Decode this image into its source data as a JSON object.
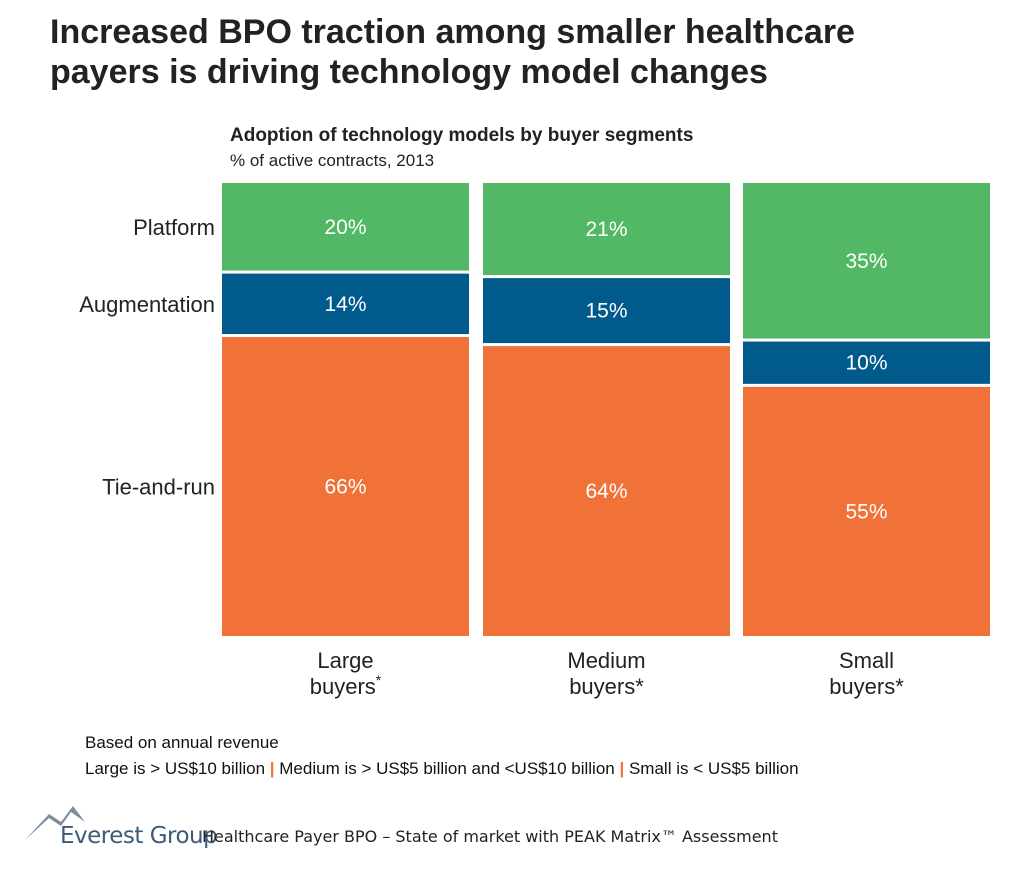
{
  "headline": {
    "line1": "Increased BPO traction among smaller healthcare",
    "line2": "payers is driving technology model changes"
  },
  "chart_data": {
    "type": "bar",
    "stacked": true,
    "normalized": true,
    "title": "Adoption of technology models by buyer segments",
    "subtitle": "% of active contracts, 2013",
    "categories": [
      {
        "line1": "Large",
        "line2": "buyers",
        "mark": "*",
        "mark_style": "superscript"
      },
      {
        "line1": "Medium",
        "line2": "buyers",
        "mark": "*",
        "mark_style": "inline"
      },
      {
        "line1": "Small",
        "line2": "buyers",
        "mark": "*",
        "mark_style": "inline"
      }
    ],
    "series": [
      {
        "name": "Platform",
        "color": "#53b866",
        "values": [
          20,
          21,
          35
        ],
        "labels": [
          "20%",
          "21%",
          "35%"
        ]
      },
      {
        "name": "Augmentation",
        "color": "#005a8c",
        "values": [
          14,
          15,
          10
        ],
        "labels": [
          "14%",
          "15%",
          "10%"
        ]
      },
      {
        "name": "Tie-and-run",
        "color": "#f07238",
        "values": [
          66,
          64,
          55
        ],
        "labels": [
          "66%",
          "64%",
          "55%"
        ]
      }
    ],
    "ylim": [
      0,
      100
    ],
    "legend": "left"
  },
  "footnotes": {
    "line1": "Based on annual revenue",
    "large": "Large is > US$10 billion",
    "medium": "Medium is > US$5 billion and <US$10 billion",
    "small": "Small is < US$5 billion",
    "separator": "|"
  },
  "footer": {
    "brand": "Everest Group",
    "source": "Healthcare Payer BPO – State of market with PEAK Matrix™ Assessment"
  }
}
